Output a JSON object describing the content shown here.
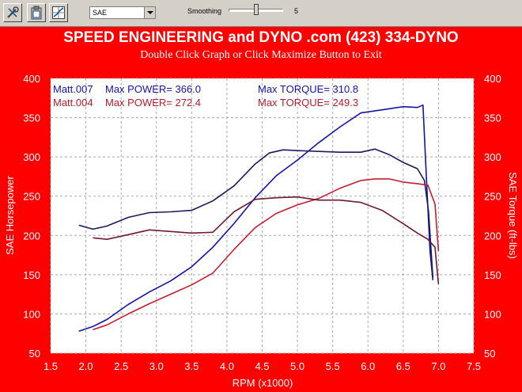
{
  "toolbar": {
    "buttons": [
      {
        "icon": "tools-icon"
      },
      {
        "icon": "clipboard-icon"
      },
      {
        "icon": "graph-icon"
      }
    ],
    "correction": "SAE",
    "smoothing_label": "Smoothing",
    "smoothing_value": "5",
    "smoothing_level": 0.5
  },
  "header": {
    "title": "SPEED ENGINEERING and DYNO .com      (423) 334-DYNO",
    "subtitle": "Double Click Graph or Click Maximize Button to Exit"
  },
  "legend": {
    "row1": {
      "run": "Matt.007",
      "power": "Max POWER= 366.0",
      "torque": "Max TORQUE= 310.8",
      "color": "#1414a8"
    },
    "row2": {
      "run": "Matt.004",
      "power": "Max POWER= 272.4",
      "torque": "Max TORQUE= 249.3",
      "color": "#b81c2c"
    }
  },
  "chart_data": {
    "type": "line",
    "xlabel": "RPM (x1000)",
    "ylabel": "SAE Horsepower",
    "y2label": "SAE Torque (ft-lbs)",
    "xlim": [
      1.5,
      7.5
    ],
    "ylim": [
      50,
      400
    ],
    "y2lim": [
      50,
      400
    ],
    "xticks": [
      "1.5",
      "2.0",
      "2.5",
      "3.0",
      "3.5",
      "4.0",
      "4.5",
      "5.0",
      "5.5",
      "6.0",
      "6.5",
      "7.0",
      "7.5"
    ],
    "yticks": [
      "50",
      "100",
      "150",
      "200",
      "250",
      "300",
      "350",
      "400"
    ],
    "grid": true,
    "series": [
      {
        "name": "Matt.007",
        "measure": "power",
        "color": "#1414a8",
        "x": [
          1.9,
          2.1,
          2.3,
          2.6,
          2.9,
          3.2,
          3.5,
          3.8,
          4.1,
          4.4,
          4.7,
          5.0,
          5.3,
          5.6,
          5.9,
          6.2,
          6.5,
          6.7,
          6.78,
          6.83,
          6.88,
          6.92
        ],
        "y": [
          78,
          84,
          93,
          112,
          128,
          142,
          160,
          185,
          215,
          248,
          276,
          296,
          318,
          338,
          356,
          360,
          364,
          363,
          366,
          270,
          180,
          143
        ]
      },
      {
        "name": "Matt.007",
        "measure": "torque",
        "color": "#1a1a5e",
        "x": [
          1.9,
          2.1,
          2.3,
          2.6,
          2.9,
          3.2,
          3.5,
          3.8,
          4.1,
          4.4,
          4.6,
          4.8,
          5.0,
          5.3,
          5.6,
          5.9,
          6.1,
          6.3,
          6.5,
          6.7,
          6.8,
          6.86,
          6.92
        ],
        "y": [
          213,
          208,
          212,
          223,
          229,
          230,
          232,
          244,
          263,
          291,
          305,
          309,
          308,
          307,
          306,
          306,
          310,
          303,
          293,
          285,
          270,
          230,
          146
        ]
      },
      {
        "name": "Matt.004",
        "measure": "power",
        "color": "#c41e2e",
        "x": [
          2.1,
          2.3,
          2.6,
          2.9,
          3.2,
          3.5,
          3.8,
          4.1,
          4.4,
          4.7,
          5.0,
          5.3,
          5.6,
          5.9,
          6.1,
          6.3,
          6.5,
          6.7,
          6.85,
          6.95,
          7.0
        ],
        "y": [
          80,
          86,
          100,
          113,
          125,
          137,
          152,
          182,
          210,
          228,
          239,
          247,
          260,
          270,
          272,
          272,
          268,
          266,
          264,
          240,
          180
        ]
      },
      {
        "name": "Matt.004",
        "measure": "torque",
        "color": "#6e1a30",
        "x": [
          2.1,
          2.3,
          2.6,
          2.9,
          3.2,
          3.5,
          3.8,
          4.1,
          4.4,
          4.7,
          5.0,
          5.3,
          5.6,
          5.9,
          6.2,
          6.5,
          6.7,
          6.85,
          6.95,
          7.0
        ],
        "y": [
          197,
          195,
          201,
          207,
          205,
          203,
          204,
          230,
          246,
          248,
          249,
          245,
          245,
          242,
          232,
          215,
          203,
          195,
          185,
          138
        ]
      }
    ]
  }
}
